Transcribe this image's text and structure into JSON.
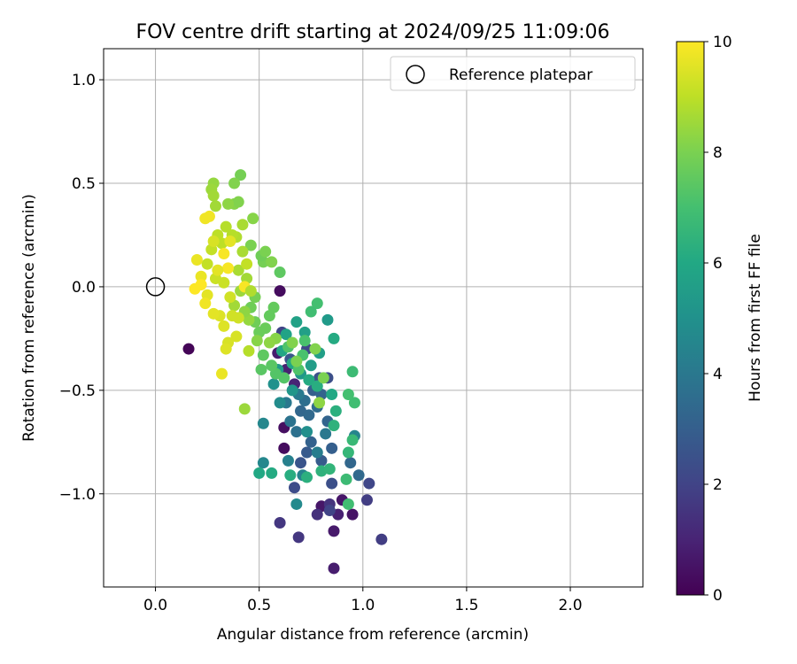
{
  "chart_data": {
    "type": "scatter",
    "title": "FOV centre drift starting at 2024/09/25 11:09:06",
    "xlabel": "Angular distance from reference (arcmin)",
    "ylabel": "Rotation from reference (arcmin)",
    "xlim": [
      -0.25,
      2.35
    ],
    "ylim": [
      -1.45,
      1.15
    ],
    "xticks": [
      0.0,
      0.5,
      1.0,
      1.5,
      2.0
    ],
    "xtick_labels": [
      "0.0",
      "0.5",
      "1.0",
      "1.5",
      "2.0"
    ],
    "yticks": [
      -1.0,
      -0.5,
      0.0,
      0.5,
      1.0
    ],
    "ytick_labels": [
      "−1.0",
      "−0.5",
      "0.0",
      "0.5",
      "1.0"
    ],
    "grid": true,
    "legend": {
      "label": "Reference platepar",
      "location": "upper right"
    },
    "reference_point": {
      "x": 0.0,
      "y": 0.0
    },
    "colorbar": {
      "label": "Hours from first FF file",
      "colormap": "viridis",
      "min": 0,
      "max": 10,
      "ticks": [
        0,
        2,
        4,
        6,
        8,
        10
      ],
      "tick_labels": [
        "0",
        "2",
        "4",
        "6",
        "8",
        "10"
      ]
    },
    "points": [
      {
        "x": 0.16,
        "y": -0.3,
        "h": 0.1
      },
      {
        "x": 0.6,
        "y": -0.02,
        "h": 0.3
      },
      {
        "x": 0.62,
        "y": -0.68,
        "h": 0.4
      },
      {
        "x": 0.62,
        "y": -0.78,
        "h": 0.3
      },
      {
        "x": 0.86,
        "y": -1.36,
        "h": 0.8
      },
      {
        "x": 0.95,
        "y": -1.1,
        "h": 0.5
      },
      {
        "x": 0.86,
        "y": -1.18,
        "h": 0.7
      },
      {
        "x": 0.8,
        "y": -1.06,
        "h": 0.6
      },
      {
        "x": 0.9,
        "y": -1.03,
        "h": 0.6
      },
      {
        "x": 0.88,
        "y": -1.1,
        "h": 0.9
      },
      {
        "x": 0.59,
        "y": -0.32,
        "h": 0.8
      },
      {
        "x": 0.63,
        "y": -0.4,
        "h": 0.9
      },
      {
        "x": 0.67,
        "y": -0.47,
        "h": 1.0
      },
      {
        "x": 0.69,
        "y": -1.21,
        "h": 1.6
      },
      {
        "x": 1.09,
        "y": -1.22,
        "h": 1.8
      },
      {
        "x": 0.6,
        "y": -1.14,
        "h": 1.6
      },
      {
        "x": 0.78,
        "y": -1.1,
        "h": 1.4
      },
      {
        "x": 0.84,
        "y": -1.05,
        "h": 1.5
      },
      {
        "x": 1.02,
        "y": -1.03,
        "h": 1.8
      },
      {
        "x": 0.84,
        "y": -1.08,
        "h": 2.0
      },
      {
        "x": 1.03,
        "y": -0.95,
        "h": 2.1
      },
      {
        "x": 0.67,
        "y": -0.97,
        "h": 2.3
      },
      {
        "x": 0.85,
        "y": -0.95,
        "h": 2.4
      },
      {
        "x": 0.7,
        "y": -0.85,
        "h": 2.6
      },
      {
        "x": 0.73,
        "y": -0.8,
        "h": 2.8
      },
      {
        "x": 0.8,
        "y": -0.84,
        "h": 2.9
      },
      {
        "x": 0.85,
        "y": -0.78,
        "h": 3.0
      },
      {
        "x": 0.75,
        "y": -0.75,
        "h": 3.1
      },
      {
        "x": 0.83,
        "y": -0.65,
        "h": 3.2
      },
      {
        "x": 0.7,
        "y": -0.6,
        "h": 3.3
      },
      {
        "x": 0.74,
        "y": -0.62,
        "h": 3.4
      },
      {
        "x": 0.78,
        "y": -0.58,
        "h": 3.5
      },
      {
        "x": 0.72,
        "y": -0.55,
        "h": 3.6
      },
      {
        "x": 0.68,
        "y": -0.7,
        "h": 3.7
      },
      {
        "x": 0.65,
        "y": -0.65,
        "h": 3.8
      },
      {
        "x": 0.94,
        "y": -0.85,
        "h": 3.3
      },
      {
        "x": 0.98,
        "y": -0.91,
        "h": 3.4
      },
      {
        "x": 0.79,
        "y": -0.44,
        "h": 2.5
      },
      {
        "x": 0.83,
        "y": -0.44,
        "h": 2.4
      },
      {
        "x": 0.73,
        "y": -0.3,
        "h": 2.2
      },
      {
        "x": 0.61,
        "y": -0.22,
        "h": 2.0
      },
      {
        "x": 0.65,
        "y": -0.35,
        "h": 2.7
      },
      {
        "x": 0.76,
        "y": -0.5,
        "h": 3.0
      },
      {
        "x": 0.8,
        "y": -0.52,
        "h": 3.2
      },
      {
        "x": 0.63,
        "y": -0.56,
        "h": 4.0
      },
      {
        "x": 0.69,
        "y": -0.52,
        "h": 4.1
      },
      {
        "x": 0.64,
        "y": -0.84,
        "h": 4.3
      },
      {
        "x": 0.71,
        "y": -0.91,
        "h": 4.4
      },
      {
        "x": 0.78,
        "y": -0.8,
        "h": 4.2
      },
      {
        "x": 0.82,
        "y": -0.71,
        "h": 4.0
      },
      {
        "x": 0.96,
        "y": -0.72,
        "h": 4.5
      },
      {
        "x": 0.52,
        "y": -0.85,
        "h": 4.6
      },
      {
        "x": 0.52,
        "y": -0.66,
        "h": 4.6
      },
      {
        "x": 0.6,
        "y": -0.56,
        "h": 4.8
      },
      {
        "x": 0.57,
        "y": -0.47,
        "h": 5.0
      },
      {
        "x": 0.68,
        "y": -1.05,
        "h": 4.7
      },
      {
        "x": 0.73,
        "y": -0.7,
        "h": 4.9
      },
      {
        "x": 0.66,
        "y": -0.5,
        "h": 5.2
      },
      {
        "x": 0.7,
        "y": -0.42,
        "h": 5.3
      },
      {
        "x": 0.59,
        "y": -0.4,
        "h": 5.4
      },
      {
        "x": 0.75,
        "y": -0.38,
        "h": 5.5
      },
      {
        "x": 0.79,
        "y": -0.32,
        "h": 5.6
      },
      {
        "x": 0.83,
        "y": -0.16,
        "h": 5.4
      },
      {
        "x": 0.72,
        "y": -0.22,
        "h": 5.6
      },
      {
        "x": 0.68,
        "y": -0.17,
        "h": 5.7
      },
      {
        "x": 0.63,
        "y": -0.23,
        "h": 5.8
      },
      {
        "x": 0.61,
        "y": -0.31,
        "h": 5.9
      },
      {
        "x": 0.66,
        "y": -0.37,
        "h": 6.0
      },
      {
        "x": 0.74,
        "y": -0.45,
        "h": 6.1
      },
      {
        "x": 0.78,
        "y": -0.48,
        "h": 6.2
      },
      {
        "x": 0.85,
        "y": -0.52,
        "h": 6.0
      },
      {
        "x": 0.86,
        "y": -0.25,
        "h": 6.1
      },
      {
        "x": 0.5,
        "y": -0.9,
        "h": 6.0
      },
      {
        "x": 0.56,
        "y": -0.9,
        "h": 6.1
      },
      {
        "x": 0.65,
        "y": -0.91,
        "h": 6.2
      },
      {
        "x": 0.73,
        "y": -0.92,
        "h": 6.3
      },
      {
        "x": 0.8,
        "y": -0.89,
        "h": 6.4
      },
      {
        "x": 0.84,
        "y": -0.88,
        "h": 6.5
      },
      {
        "x": 0.87,
        "y": -0.6,
        "h": 6.3
      },
      {
        "x": 0.86,
        "y": -0.67,
        "h": 6.4
      },
      {
        "x": 0.93,
        "y": -0.8,
        "h": 6.6
      },
      {
        "x": 0.95,
        "y": -0.74,
        "h": 6.7
      },
      {
        "x": 0.92,
        "y": -0.93,
        "h": 6.8
      },
      {
        "x": 0.93,
        "y": -1.05,
        "h": 6.9
      },
      {
        "x": 0.95,
        "y": -0.41,
        "h": 6.8
      },
      {
        "x": 0.96,
        "y": -0.56,
        "h": 6.9
      },
      {
        "x": 0.93,
        "y": -0.52,
        "h": 7.0
      },
      {
        "x": 0.78,
        "y": -0.08,
        "h": 7.0
      },
      {
        "x": 0.75,
        "y": -0.12,
        "h": 6.9
      },
      {
        "x": 0.72,
        "y": -0.26,
        "h": 7.1
      },
      {
        "x": 0.71,
        "y": -0.33,
        "h": 7.1
      },
      {
        "x": 0.69,
        "y": -0.4,
        "h": 7.2
      },
      {
        "x": 0.64,
        "y": -0.29,
        "h": 7.2
      },
      {
        "x": 0.62,
        "y": -0.44,
        "h": 7.3
      },
      {
        "x": 0.58,
        "y": -0.42,
        "h": 7.3
      },
      {
        "x": 0.56,
        "y": -0.38,
        "h": 7.4
      },
      {
        "x": 0.51,
        "y": -0.4,
        "h": 7.4
      },
      {
        "x": 0.52,
        "y": -0.33,
        "h": 7.5
      },
      {
        "x": 0.6,
        "y": 0.07,
        "h": 7.5
      },
      {
        "x": 0.57,
        "y": -0.1,
        "h": 7.6
      },
      {
        "x": 0.55,
        "y": -0.14,
        "h": 7.6
      },
      {
        "x": 0.53,
        "y": -0.2,
        "h": 7.7
      },
      {
        "x": 0.5,
        "y": -0.22,
        "h": 7.7
      },
      {
        "x": 0.48,
        "y": -0.17,
        "h": 7.8
      },
      {
        "x": 0.46,
        "y": -0.1,
        "h": 7.8
      },
      {
        "x": 0.48,
        "y": -0.05,
        "h": 7.9
      },
      {
        "x": 0.52,
        "y": 0.12,
        "h": 7.9
      },
      {
        "x": 0.51,
        "y": 0.15,
        "h": 7.8
      },
      {
        "x": 0.46,
        "y": 0.2,
        "h": 8.0
      },
      {
        "x": 0.47,
        "y": 0.33,
        "h": 8.2
      },
      {
        "x": 0.41,
        "y": 0.54,
        "h": 7.9
      },
      {
        "x": 0.38,
        "y": 0.5,
        "h": 8.1
      },
      {
        "x": 0.38,
        "y": 0.4,
        "h": 8.2
      },
      {
        "x": 0.4,
        "y": 0.41,
        "h": 8.1
      },
      {
        "x": 0.28,
        "y": 0.5,
        "h": 8.4
      },
      {
        "x": 0.27,
        "y": 0.47,
        "h": 8.5
      },
      {
        "x": 0.28,
        "y": 0.44,
        "h": 8.6
      },
      {
        "x": 0.43,
        "y": -0.59,
        "h": 8.5
      },
      {
        "x": 0.79,
        "y": -0.56,
        "h": 8.3
      },
      {
        "x": 0.81,
        "y": -0.44,
        "h": 8.0
      },
      {
        "x": 0.77,
        "y": -0.3,
        "h": 8.1
      },
      {
        "x": 0.68,
        "y": -0.36,
        "h": 8.0
      },
      {
        "x": 0.66,
        "y": -0.27,
        "h": 8.1
      },
      {
        "x": 0.58,
        "y": -0.25,
        "h": 8.2
      },
      {
        "x": 0.55,
        "y": -0.27,
        "h": 8.3
      },
      {
        "x": 0.49,
        "y": -0.26,
        "h": 8.2
      },
      {
        "x": 0.45,
        "y": -0.16,
        "h": 8.4
      },
      {
        "x": 0.43,
        "y": -0.12,
        "h": 8.3
      },
      {
        "x": 0.38,
        "y": -0.09,
        "h": 8.6
      },
      {
        "x": 0.41,
        "y": -0.02,
        "h": 8.5
      },
      {
        "x": 0.44,
        "y": 0.04,
        "h": 8.6
      },
      {
        "x": 0.4,
        "y": 0.08,
        "h": 8.7
      },
      {
        "x": 0.42,
        "y": 0.17,
        "h": 8.7
      },
      {
        "x": 0.39,
        "y": 0.24,
        "h": 8.8
      },
      {
        "x": 0.37,
        "y": 0.25,
        "h": 8.9
      },
      {
        "x": 0.34,
        "y": 0.29,
        "h": 8.9
      },
      {
        "x": 0.32,
        "y": 0.21,
        "h": 9.0
      },
      {
        "x": 0.3,
        "y": 0.25,
        "h": 9.0
      },
      {
        "x": 0.27,
        "y": 0.18,
        "h": 9.1
      },
      {
        "x": 0.25,
        "y": 0.11,
        "h": 9.1
      },
      {
        "x": 0.29,
        "y": 0.04,
        "h": 9.2
      },
      {
        "x": 0.33,
        "y": 0.02,
        "h": 9.2
      },
      {
        "x": 0.36,
        "y": -0.05,
        "h": 9.3
      },
      {
        "x": 0.37,
        "y": -0.14,
        "h": 9.3
      },
      {
        "x": 0.39,
        "y": -0.24,
        "h": 9.4
      },
      {
        "x": 0.35,
        "y": -0.27,
        "h": 9.4
      },
      {
        "x": 0.33,
        "y": -0.19,
        "h": 9.5
      },
      {
        "x": 0.31,
        "y": -0.14,
        "h": 9.5
      },
      {
        "x": 0.28,
        "y": -0.13,
        "h": 9.6
      },
      {
        "x": 0.25,
        "y": -0.04,
        "h": 9.6
      },
      {
        "x": 0.22,
        "y": 0.05,
        "h": 9.7
      },
      {
        "x": 0.2,
        "y": 0.13,
        "h": 9.7
      },
      {
        "x": 0.24,
        "y": 0.33,
        "h": 9.8
      },
      {
        "x": 0.26,
        "y": 0.34,
        "h": 9.8
      },
      {
        "x": 0.33,
        "y": 0.16,
        "h": 9.9
      },
      {
        "x": 0.35,
        "y": 0.09,
        "h": 9.9
      },
      {
        "x": 0.19,
        "y": -0.01,
        "h": 10.0
      },
      {
        "x": 0.22,
        "y": 0.01,
        "h": 10.0
      },
      {
        "x": 0.32,
        "y": -0.42,
        "h": 9.7
      },
      {
        "x": 0.45,
        "y": -0.31,
        "h": 8.9
      },
      {
        "x": 0.44,
        "y": 0.11,
        "h": 9.1
      },
      {
        "x": 0.3,
        "y": 0.08,
        "h": 9.6
      },
      {
        "x": 0.24,
        "y": -0.08,
        "h": 9.8
      },
      {
        "x": 0.28,
        "y": 0.22,
        "h": 9.4
      },
      {
        "x": 0.36,
        "y": 0.22,
        "h": 9.6
      },
      {
        "x": 0.43,
        "y": 0.0,
        "h": 9.9
      },
      {
        "x": 0.4,
        "y": -0.15,
        "h": 9.3
      },
      {
        "x": 0.34,
        "y": -0.3,
        "h": 9.5
      },
      {
        "x": 0.56,
        "y": 0.12,
        "h": 8.1
      },
      {
        "x": 0.53,
        "y": 0.17,
        "h": 8.0
      },
      {
        "x": 0.42,
        "y": 0.3,
        "h": 8.7
      },
      {
        "x": 0.35,
        "y": 0.4,
        "h": 8.3
      },
      {
        "x": 0.29,
        "y": 0.39,
        "h": 8.6
      },
      {
        "x": 0.46,
        "y": -0.02,
        "h": 8.8
      }
    ]
  }
}
